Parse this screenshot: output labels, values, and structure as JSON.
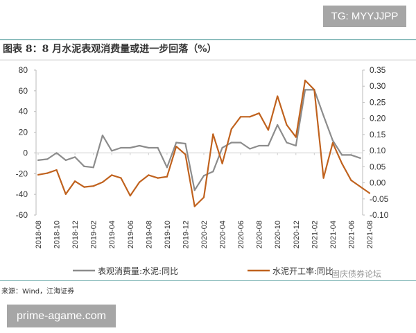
{
  "watermarks": {
    "top": "TG: MYYJJPP",
    "bottom": "prime-agame.com",
    "brand": "固庆债券论坛"
  },
  "title": "图表 8：8 月水泥表观消费量或进一步回落（%）",
  "source": "来源：Wind，江海证券",
  "colors": {
    "gray": "#8c8c8c",
    "orange": "#c0621e",
    "rule": "#8fbfbf"
  },
  "chart_data": {
    "type": "line",
    "title": "图表 8：8 月水泥表观消费量或进一步回落（%）",
    "x": [
      "2018-08",
      "2018-09",
      "2018-10",
      "2018-11",
      "2018-12",
      "2019-01",
      "2019-02",
      "2019-03",
      "2019-04",
      "2019-05",
      "2019-06",
      "2019-07",
      "2019-08",
      "2019-09",
      "2019-10",
      "2019-11",
      "2019-12",
      "2020-01",
      "2020-02",
      "2020-03",
      "2020-04",
      "2020-05",
      "2020-06",
      "2020-07",
      "2020-08",
      "2020-09",
      "2020-10",
      "2020-11",
      "2020-12",
      "2021-01",
      "2021-02",
      "2021-03",
      "2021-04",
      "2021-05",
      "2021-06",
      "2021-07",
      "2021-08"
    ],
    "x_tick_labels": [
      "2018-08",
      "2018-10",
      "2018-12",
      "2019-02",
      "2019-04",
      "2019-06",
      "2019-08",
      "2019-10",
      "2019-12",
      "2020-02",
      "2020-04",
      "2020-06",
      "2020-08",
      "2020-10",
      "2020-12",
      "2021-02",
      "2021-04",
      "2021-06",
      "2021-08"
    ],
    "y_left": {
      "lim": [
        -60,
        80
      ],
      "ticks": [
        "80",
        "60",
        "40",
        "20",
        "0",
        "-20",
        "-40",
        "-60"
      ]
    },
    "y_right": {
      "lim": [
        -0.1,
        0.35
      ],
      "ticks": [
        "0.35",
        "0.30",
        "0.25",
        "0.20",
        "0.15",
        "0.10",
        "0.05",
        "0.00",
        "-0.05",
        "-0.10"
      ]
    },
    "legend": "bottom",
    "grid": false,
    "series": [
      {
        "name": "表观消费量:水泥:同比",
        "axis": "left",
        "color": "#8c8c8c",
        "values": [
          -7,
          -6,
          0,
          -7,
          -4,
          -13,
          -14,
          17,
          2,
          5,
          5,
          7,
          5,
          5,
          -14,
          10,
          9,
          -36,
          -22,
          -18,
          5,
          10,
          10,
          4,
          7,
          7,
          27,
          10,
          7,
          61,
          61,
          36,
          12,
          -2,
          -2,
          -5,
          null
        ]
      },
      {
        "name": "水泥开工率:同比",
        "axis": "right",
        "color": "#c0621e",
        "values": [
          0.025,
          0.03,
          0.04,
          -0.035,
          0.005,
          -0.013,
          -0.01,
          0.002,
          0.024,
          0.015,
          -0.04,
          0.002,
          0.024,
          0.015,
          0.019,
          0.113,
          0.088,
          -0.073,
          -0.045,
          0.151,
          0.06,
          0.167,
          0.205,
          0.205,
          0.216,
          0.164,
          0.269,
          0.18,
          0.142,
          0.318,
          0.289,
          0.015,
          0.124,
          0.06,
          0.008,
          -0.012,
          -0.032
        ]
      }
    ]
  }
}
